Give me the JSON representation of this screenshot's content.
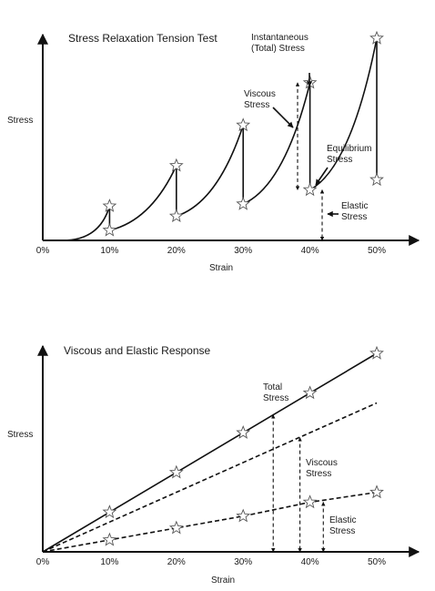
{
  "chart_data": [
    {
      "type": "line",
      "title": "Stress Relaxation Tension Test",
      "xlabel": "Strain",
      "ylabel": "Stress",
      "x_ticks": [
        "0%",
        "10%",
        "20%",
        "30%",
        "40%",
        "50%"
      ],
      "xlim": [
        0,
        50
      ],
      "ylim": [
        0,
        100
      ],
      "loading_peaks": [
        {
          "strain": 10,
          "stress": 17
        },
        {
          "strain": 20,
          "stress": 37
        },
        {
          "strain": 30,
          "stress": 57
        },
        {
          "strain": 40,
          "stress": 78
        },
        {
          "strain": 50,
          "stress": 100
        }
      ],
      "relaxed_points": [
        {
          "strain": 10,
          "stress": 5
        },
        {
          "strain": 20,
          "stress": 12
        },
        {
          "strain": 30,
          "stress": 18
        },
        {
          "strain": 40,
          "stress": 25
        },
        {
          "strain": 50,
          "stress": 30
        }
      ],
      "annotations": {
        "instantaneous": "Instantaneous\n(Total) Stress",
        "viscous": "Viscous\nStress",
        "equilibrium": "Equilibrium\nStress",
        "elastic": "Elastic\nStress"
      }
    },
    {
      "type": "line",
      "title": "Viscous and Elastic Response",
      "xlabel": "Strain",
      "ylabel": "Stress",
      "x_ticks": [
        "0%",
        "10%",
        "20%",
        "30%",
        "40%",
        "50%"
      ],
      "xlim": [
        0,
        50
      ],
      "ylim": [
        0,
        100
      ],
      "series": [
        {
          "style": "solid",
          "x": [
            0,
            10,
            20,
            30,
            40,
            50
          ],
          "y": [
            0,
            20,
            40,
            60,
            80,
            100
          ]
        },
        {
          "style": "dashed",
          "x": [
            0,
            50
          ],
          "y": [
            0,
            75
          ]
        },
        {
          "style": "dashed",
          "x": [
            0,
            10,
            20,
            30,
            40,
            50
          ],
          "y": [
            0,
            6,
            12,
            18,
            25,
            30
          ]
        }
      ],
      "annotations": {
        "total": "Total\nStress",
        "viscous": "Viscous\nStress",
        "elastic": "Elastic\nStress"
      }
    }
  ]
}
